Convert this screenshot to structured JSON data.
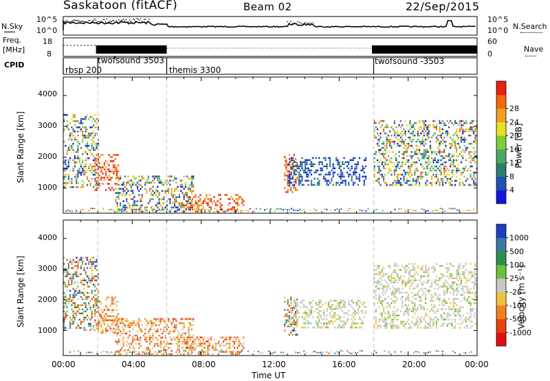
{
  "header": {
    "station": "Saskatoon (fitACF)",
    "beam": "Beam 02",
    "date": "22/Sep/2015"
  },
  "strips": {
    "nsky_label": "N.Sky",
    "nsky_top": "10^5",
    "nsky_bottom": "10^0",
    "nsearch_label": "N.Search",
    "nsearch_top": "10^5",
    "nsearch_bottom": "10^0",
    "freq_label_1": "Freq.",
    "freq_label_2": "[MHz]",
    "freq_top": "18",
    "freq_bottom": "8",
    "nave_label": "Nave",
    "nave_top": "60",
    "nave_bottom": "0",
    "cpid_label": "CPID",
    "cpid_segments": [
      {
        "label": "rbsp 200",
        "start_hour": 0
      },
      {
        "label": "twofsound 3503",
        "start_hour": 2
      },
      {
        "label": "themis 3300",
        "start_hour": 6
      },
      {
        "label": "twofsound -3503",
        "start_hour": 18
      }
    ]
  },
  "chart_data": [
    {
      "type": "heatmap",
      "title": "",
      "xlabel": "",
      "ylabel": "Slant Range [km]",
      "xlim": [
        0,
        24
      ],
      "ylim": [
        180,
        4600
      ],
      "yticks": [
        "1000",
        "2000",
        "3000",
        "4000"
      ],
      "colorbar_label": "Power [dB]",
      "colorbar_ticks": [
        "4",
        "8",
        "12",
        "16",
        "20",
        "24",
        "28"
      ],
      "colorbar_colors": [
        "#1515e0",
        "#2050b0",
        "#2e7d6f",
        "#4aa862",
        "#7ccf3c",
        "#e8e020",
        "#f0a020",
        "#f06a10",
        "#e82010"
      ],
      "echo_regions": [
        {
          "x": [
            0.0,
            2.0
          ],
          "y": [
            1000,
            3400
          ],
          "level": "mixed"
        },
        {
          "x": [
            1.8,
            3.2
          ],
          "y": [
            900,
            2100
          ],
          "level": "high"
        },
        {
          "x": [
            3.0,
            7.5
          ],
          "y": [
            250,
            1400
          ],
          "level": "mixed"
        },
        {
          "x": [
            7.0,
            10.5
          ],
          "y": [
            200,
            800
          ],
          "level": "high"
        },
        {
          "x": [
            12.8,
            13.6
          ],
          "y": [
            850,
            2100
          ],
          "level": "high"
        },
        {
          "x": [
            13.0,
            17.5
          ],
          "y": [
            1100,
            2000
          ],
          "level": "low"
        },
        {
          "x": [
            18.0,
            24.0
          ],
          "y": [
            1100,
            3200
          ],
          "level": "mixed"
        }
      ]
    },
    {
      "type": "heatmap",
      "title": "",
      "xlabel": "Time UT",
      "ylabel": "Slant Range [km]",
      "xlim": [
        0,
        24
      ],
      "ylim": [
        180,
        4600
      ],
      "xticks": [
        "00:00",
        "04:00",
        "08:00",
        "12:00",
        "16:00",
        "20:00",
        "00:00"
      ],
      "yticks": [
        "1000",
        "2000",
        "3000",
        "4000"
      ],
      "colorbar_label": "Velocity [m s⁻¹]",
      "colorbar_ticks": [
        "1000",
        "500",
        "100",
        "25",
        "-25",
        "-100",
        "-500",
        "-1000"
      ],
      "colorbar_colors": [
        "#1f3fbf",
        "#3c78a0",
        "#2f8f4a",
        "#6cc23c",
        "#c8c8c8",
        "#f0c040",
        "#f08020",
        "#e84010",
        "#e01010"
      ],
      "echo_regions": [
        {
          "x": [
            0.0,
            2.0
          ],
          "y": [
            1000,
            3400
          ],
          "level": "mixed"
        },
        {
          "x": [
            1.8,
            3.2
          ],
          "y": [
            900,
            2100
          ],
          "level": "negative"
        },
        {
          "x": [
            3.0,
            7.5
          ],
          "y": [
            250,
            1400
          ],
          "level": "negative"
        },
        {
          "x": [
            7.0,
            10.5
          ],
          "y": [
            200,
            800
          ],
          "level": "negative"
        },
        {
          "x": [
            12.8,
            13.6
          ],
          "y": [
            850,
            2100
          ],
          "level": "mixed"
        },
        {
          "x": [
            13.0,
            17.5
          ],
          "y": [
            1100,
            2000
          ],
          "level": "near-zero"
        },
        {
          "x": [
            18.0,
            24.0
          ],
          "y": [
            1100,
            3200
          ],
          "level": "near-zero"
        }
      ]
    }
  ]
}
